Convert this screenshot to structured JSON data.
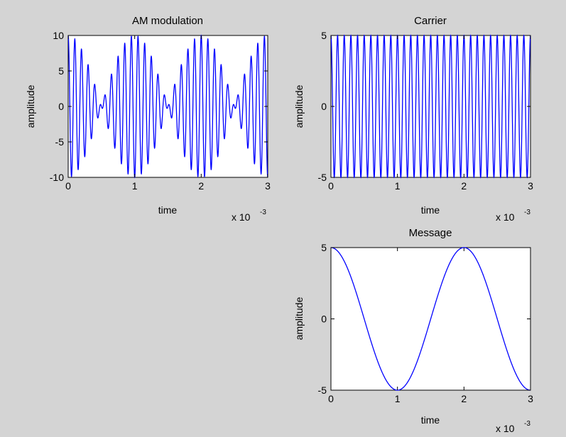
{
  "chart_data": [
    {
      "type": "line",
      "title": "AM modulation",
      "xlabel": "time",
      "ylabel": "amplitude",
      "x_multiplier": {
        "base": "x 10",
        "exponent": "-3"
      },
      "xlim": [
        0,
        3
      ],
      "ylim": [
        -10,
        10
      ],
      "xticks": [
        0,
        1,
        2,
        3
      ],
      "yticks": [
        -10,
        -5,
        0,
        5,
        10
      ],
      "x_scale": 0.001,
      "grid": false,
      "series": [
        {
          "color": "#0000ff",
          "function": "product_of_message_and_carrier",
          "carrier": {
            "amplitude": 5,
            "frequency": 10000
          },
          "message": {
            "amplitude": 2,
            "frequency": 500
          }
        }
      ]
    },
    {
      "type": "line",
      "title": "Carrier",
      "xlabel": "time",
      "ylabel": "amplitude",
      "x_multiplier": {
        "base": "x 10",
        "exponent": "-3"
      },
      "xlim": [
        0,
        3
      ],
      "ylim": [
        -5,
        5
      ],
      "xticks": [
        0,
        1,
        2,
        3
      ],
      "yticks": [
        -5,
        0,
        5
      ],
      "x_scale": 0.001,
      "grid": false,
      "series": [
        {
          "color": "#0000ff",
          "function": "cosine",
          "amplitude": 5,
          "frequency": 10000
        }
      ]
    },
    {
      "type": "line",
      "title": "Message",
      "xlabel": "time",
      "ylabel": "amplitude",
      "x_multiplier": {
        "base": "x 10",
        "exponent": "-3"
      },
      "xlim": [
        0,
        3
      ],
      "ylim": [
        -5,
        5
      ],
      "xticks": [
        0,
        1,
        2,
        3
      ],
      "yticks": [
        -5,
        0,
        5
      ],
      "x_scale": 0.001,
      "grid": false,
      "series": [
        {
          "color": "#0000ff",
          "function": "cosine",
          "amplitude": 5,
          "frequency": 500
        }
      ]
    }
  ]
}
